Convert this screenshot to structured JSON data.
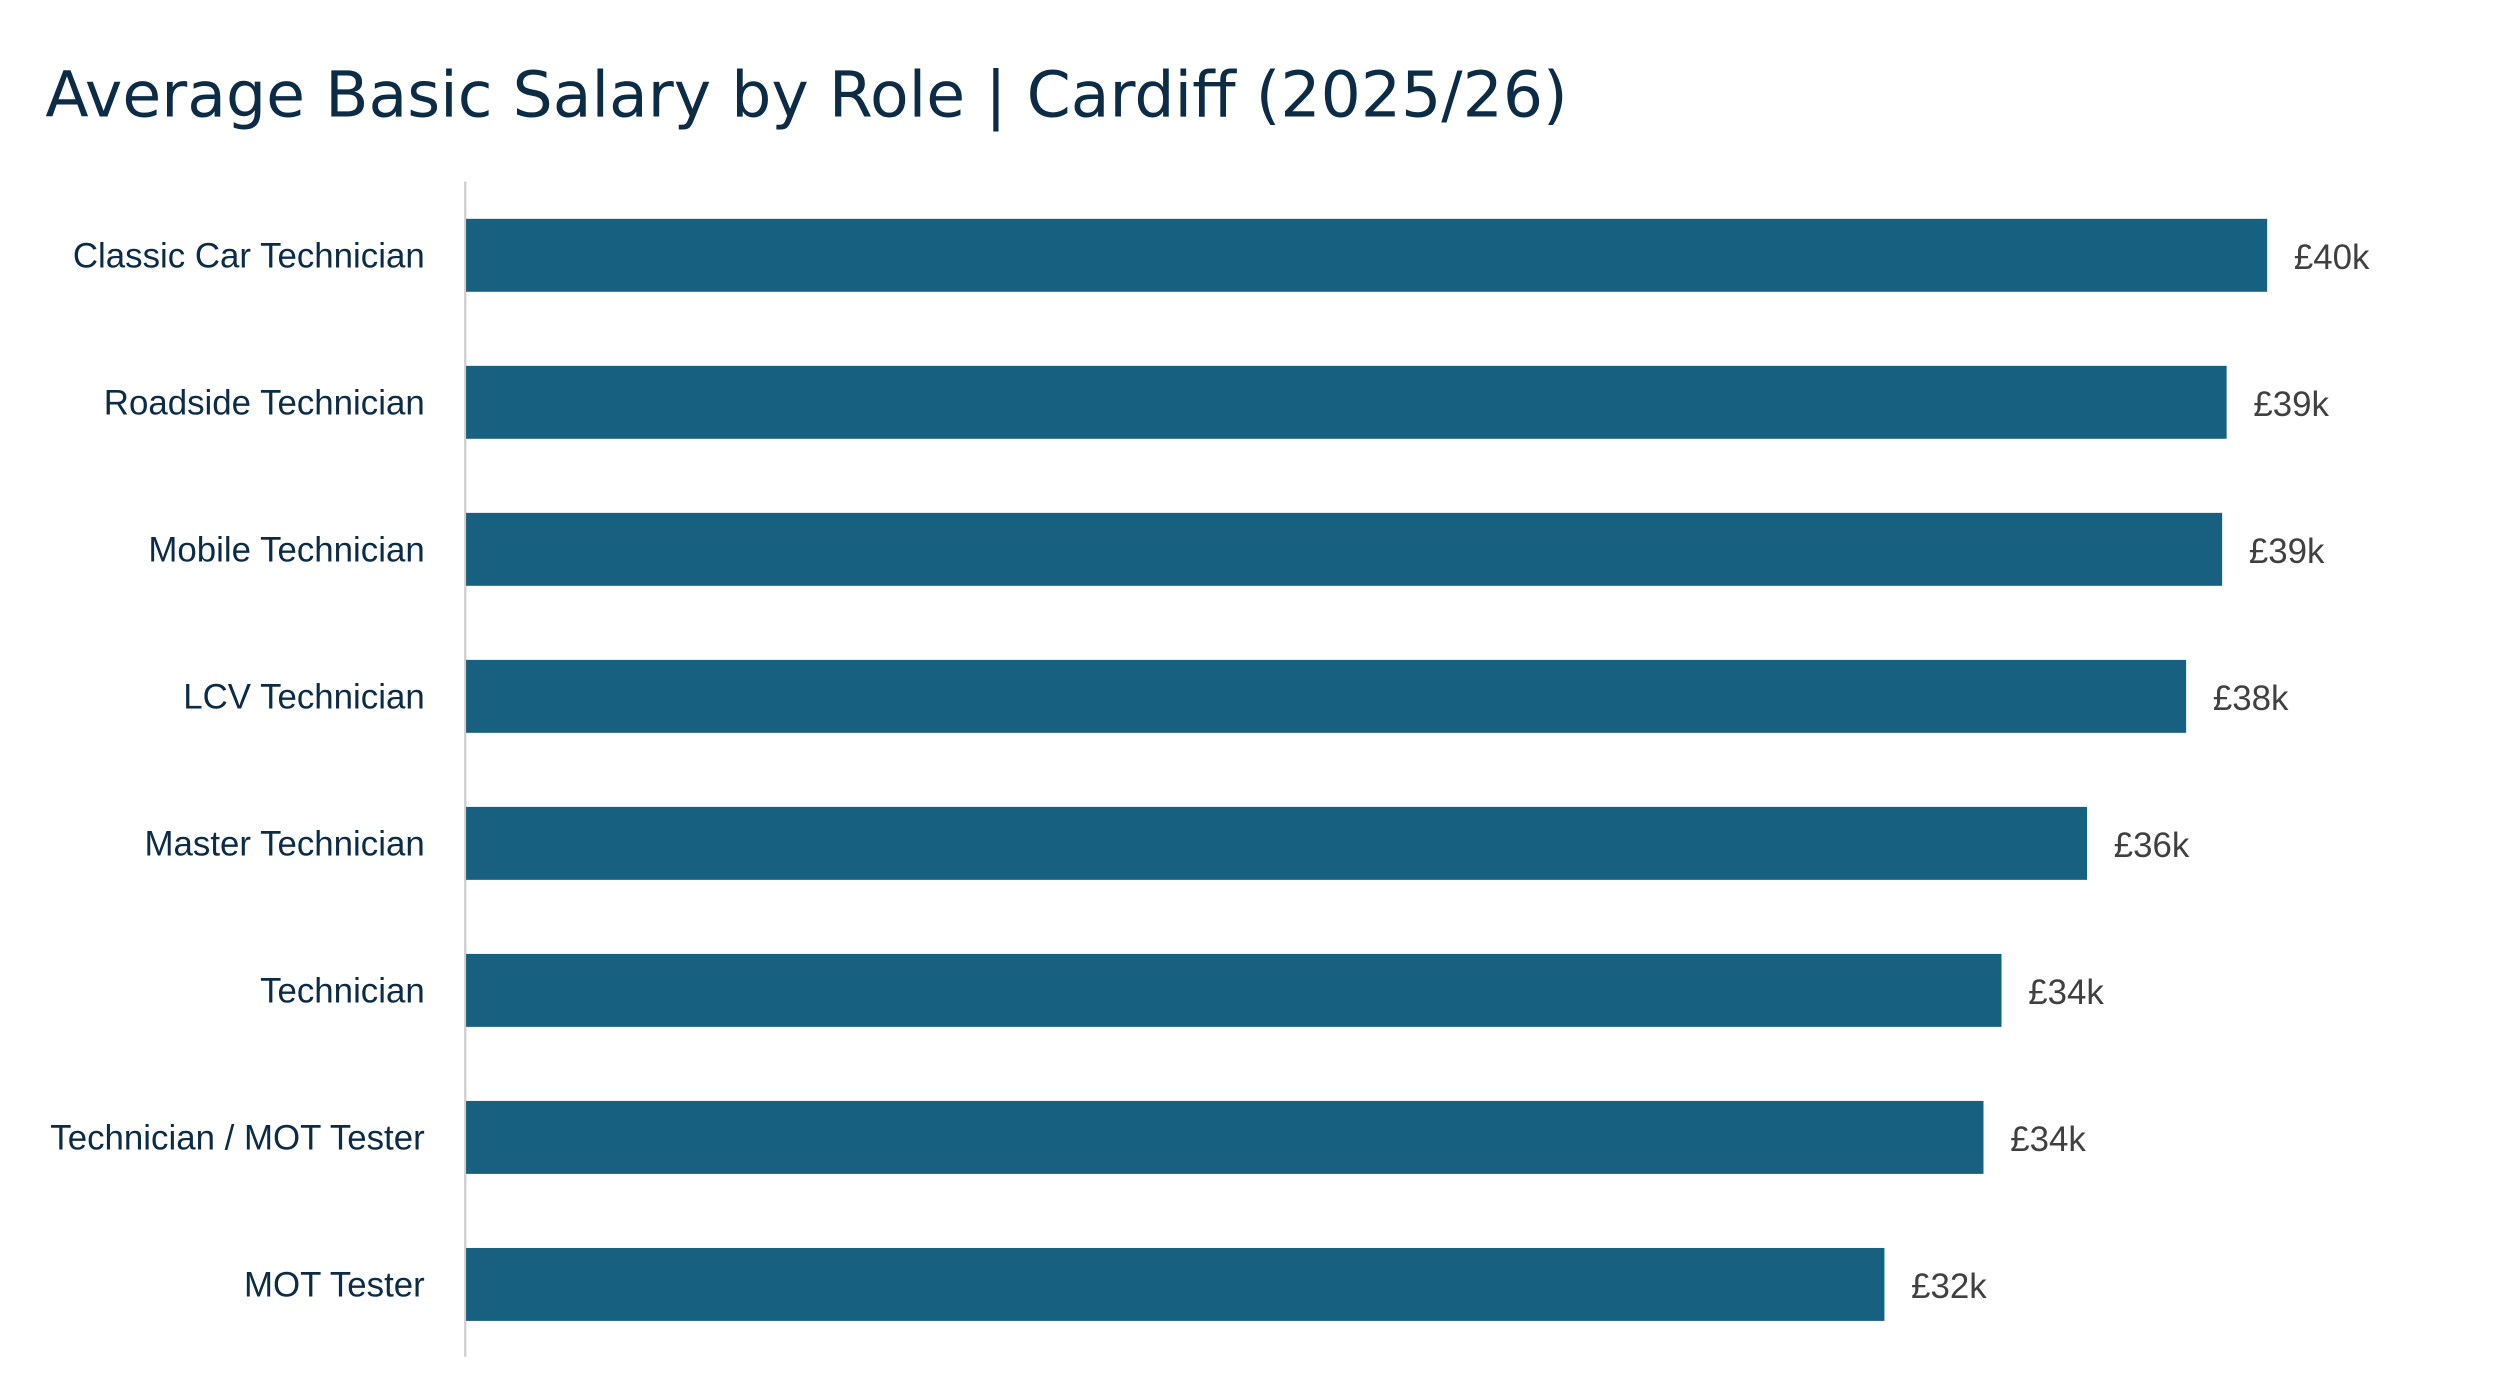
{
  "chart_data": {
    "type": "bar",
    "orientation": "horizontal",
    "title": "Average Basic Salary by Role | Cardiff (2025/26)",
    "xlabel": "",
    "ylabel": "",
    "categories": [
      "Classic Car Technician",
      "Roadside Technician",
      "Mobile Technician",
      "LCV Technician",
      "Master Technician",
      "Technician",
      "Technician / MOT Tester",
      "MOT Tester"
    ],
    "values": [
      40.0,
      39.1,
      39.0,
      38.2,
      36.0,
      34.1,
      33.7,
      31.5
    ],
    "data_labels": [
      "£40k",
      "£39k",
      "£39k",
      "£38k",
      "£36k",
      "£34k",
      "£34k",
      "£32k"
    ],
    "unit": "£ thousands",
    "xlim": [
      0,
      40
    ],
    "grid": false,
    "legend": "none",
    "bar_color": "#17607f"
  }
}
